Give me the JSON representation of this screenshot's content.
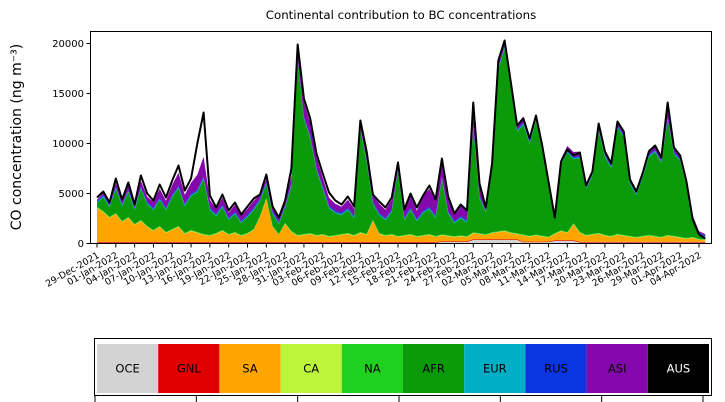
{
  "figure": {
    "background": "#ffffff"
  },
  "chart_data": {
    "type": "area",
    "stacked": true,
    "title": "Continental contribution to BC concentrations",
    "ylabel": "CO concentration (ng m⁻³)",
    "xlabel": "",
    "ylim": [
      0,
      21200
    ],
    "yticks": [
      0,
      5000,
      10000,
      15000,
      20000
    ],
    "ytick_labels": [
      "0",
      "5000",
      "10000",
      "15000",
      "20000"
    ],
    "x_unit": "days since 29-Dec-2021",
    "x_tick_interval_days": 3,
    "x_tick_labels": [
      "29-Dec-2021",
      "01-Jan-2022",
      "04-Jan-2022",
      "07-Jan-2022",
      "10-Jan-2022",
      "13-Jan-2022",
      "16-Jan-2022",
      "19-Jan-2022",
      "22-Jan-2022",
      "25-Jan-2022",
      "28-Jan-2022",
      "31-Jan-2022",
      "03-Feb-2022",
      "06-Feb-2022",
      "09-Feb-2022",
      "12-Feb-2022",
      "15-Feb-2022",
      "18-Feb-2022",
      "21-Feb-2022",
      "24-Feb-2022",
      "27-Feb-2022",
      "02-Mar-2022",
      "05-Mar-2022",
      "08-Mar-2022",
      "11-Mar-2022",
      "14-Mar-2022",
      "17-Mar-2022",
      "20-Mar-2022",
      "23-Mar-2022",
      "26-Mar-2022",
      "29-Mar-2022",
      "01-Apr-2022",
      "04-Apr-2022"
    ],
    "n_days": 98,
    "grid": false,
    "series": [
      {
        "name": "OCE",
        "color": "#d3d3d3",
        "values": [
          80,
          80,
          80,
          80,
          80,
          80,
          80,
          80,
          80,
          80,
          80,
          80,
          80,
          80,
          80,
          80,
          80,
          80,
          80,
          80,
          80,
          80,
          80,
          80,
          80,
          80,
          80,
          80,
          80,
          80,
          80,
          80,
          80,
          80,
          80,
          80,
          80,
          80,
          80,
          80,
          80,
          80,
          80,
          80,
          80,
          80,
          80,
          80,
          80,
          80,
          80,
          80,
          80,
          80,
          80,
          150,
          150,
          150,
          150,
          150,
          350,
          350,
          350,
          350,
          350,
          350,
          350,
          350,
          120,
          120,
          120,
          120,
          120,
          250,
          250,
          250,
          250,
          90,
          90,
          90,
          90,
          90,
          90,
          90,
          90,
          90,
          90,
          90,
          90,
          90,
          90,
          90,
          90,
          90,
          90,
          90,
          90,
          90
        ]
      },
      {
        "name": "GNL",
        "color": "#e00000",
        "value": 70
      },
      {
        "name": "SA",
        "color": "#ffa500",
        "values": [
          3400,
          3000,
          2400,
          2800,
          2000,
          2400,
          1700,
          2100,
          1500,
          1100,
          1500,
          900,
          1200,
          1500,
          800,
          1100,
          900,
          700,
          600,
          800,
          1100,
          700,
          900,
          600,
          800,
          1200,
          2500,
          4300,
          1500,
          700,
          1800,
          1000,
          600,
          700,
          800,
          600,
          700,
          500,
          600,
          700,
          800,
          600,
          900,
          700,
          2100,
          800,
          600,
          700,
          500,
          600,
          700,
          500,
          600,
          700,
          500,
          600,
          500,
          400,
          500,
          400,
          600,
          500,
          400,
          600,
          700,
          800,
          600,
          500,
          600,
          500,
          600,
          500,
          400,
          600,
          900,
          700,
          1600,
          900,
          600,
          700,
          800,
          600,
          500,
          700,
          600,
          500,
          400,
          500,
          600,
          500,
          400,
          600,
          500,
          400,
          300,
          400,
          200,
          150
        ]
      },
      {
        "name": "CA",
        "color": "#bdf53a",
        "value": 40
      },
      {
        "name": "NA",
        "color": "#21d121",
        "value": 60
      },
      {
        "name": "AFR",
        "color": "#0a9a0a",
        "values": [
          400,
          1400,
          1000,
          2400,
          1500,
          2500,
          1400,
          3100,
          2200,
          2000,
          2600,
          2200,
          3200,
          3800,
          2700,
          3400,
          4000,
          5500,
          2500,
          1700,
          2300,
          1400,
          1800,
          1200,
          1600,
          1900,
          1500,
          1400,
          1200,
          1000,
          1500,
          4500,
          17500,
          11500,
          9500,
          6500,
          4500,
          2800,
          2200,
          1900,
          2300,
          1700,
          10200,
          7200,
          1600,
          1800,
          1500,
          2200,
          6500,
          1500,
          2400,
          1500,
          2200,
          2500,
          1800,
          5500,
          2200,
          1300,
          1700,
          1400,
          10500,
          3500,
          2200,
          6500,
          16200,
          18200,
          14500,
          10200,
          11000,
          9200,
          11400,
          8600,
          5200,
          1600,
          6600,
          8000,
          6400,
          7400,
          4600,
          5800,
          10200,
          7800,
          6800,
          10600,
          9800,
          5200,
          4200,
          5800,
          7800,
          8400,
          7400,
          11500,
          8200,
          7600,
          5200,
          1700,
          400,
          200
        ]
      },
      {
        "name": "EUR",
        "color": "#00aec5",
        "value": 90
      },
      {
        "name": "RUS",
        "color": "#0a35e0",
        "value": 130
      },
      {
        "name": "ASI",
        "color": "#8408ab",
        "values": [
          100,
          200,
          150,
          400,
          300,
          500,
          300,
          600,
          500,
          600,
          900,
          700,
          1000,
          1300,
          900,
          1100,
          1500,
          2000,
          800,
          500,
          700,
          500,
          700,
          500,
          600,
          700,
          400,
          300,
          400,
          300,
          500,
          800,
          1200,
          1500,
          1300,
          1100,
          900,
          800,
          700,
          600,
          800,
          700,
          700,
          600,
          700,
          900,
          800,
          1000,
          700,
          800,
          1500,
          800,
          1500,
          1800,
          1500,
          1800,
          1400,
          800,
          1200,
          900,
          2200,
          1400,
          600,
          500,
          600,
          500,
          400,
          500,
          600,
          400,
          400,
          300,
          300,
          200,
          300,
          400,
          500,
          400,
          300,
          400,
          600,
          400,
          300,
          500,
          400,
          300,
          300,
          400,
          500,
          400,
          300,
          900,
          400,
          300,
          300,
          200,
          150,
          100
        ]
      },
      {
        "name": "AUS",
        "color": "#000000",
        "value": 5
      }
    ],
    "total_line": {
      "name": "total",
      "color": "#000000",
      "values": [
        4600,
        5200,
        4100,
        6500,
        4400,
        6100,
        3900,
        6800,
        5000,
        4300,
        5900,
        4600,
        6300,
        7800,
        5300,
        6500,
        10000,
        13100,
        4800,
        3600,
        4900,
        3300,
        4100,
        2900,
        3700,
        4500,
        4900,
        6900,
        3700,
        2600,
        4300,
        7500,
        19900,
        14500,
        12500,
        9000,
        7000,
        5100,
        4300,
        3900,
        4700,
        3700,
        12300,
        9200,
        4900,
        4200,
        3600,
        4600,
        8100,
        3400,
        5000,
        3600,
        4800,
        5800,
        4400,
        8500,
        4700,
        3000,
        3900,
        3300,
        14100,
        6000,
        3600,
        8000,
        18300,
        20300,
        16100,
        11800,
        12500,
        10500,
        12800,
        9800,
        6200,
        2600,
        8200,
        9400,
        8800,
        9100,
        5800,
        7200,
        12000,
        9200,
        8000,
        12200,
        11200,
        6400,
        5200,
        7000,
        9200,
        9800,
        8600,
        14100,
        9600,
        8800,
        6200,
        2400,
        900,
        500
      ]
    }
  },
  "legend": {
    "position": "bottom",
    "items": [
      {
        "label": "OCE",
        "color": "#d3d3d3",
        "text_color": "#000000"
      },
      {
        "label": "GNL",
        "color": "#e00000",
        "text_color": "#000000"
      },
      {
        "label": "SA",
        "color": "#ffa500",
        "text_color": "#000000"
      },
      {
        "label": "CA",
        "color": "#bdf53a",
        "text_color": "#000000"
      },
      {
        "label": "NA",
        "color": "#21d121",
        "text_color": "#000000"
      },
      {
        "label": "AFR",
        "color": "#0a9a0a",
        "text_color": "#000000"
      },
      {
        "label": "EUR",
        "color": "#00aec5",
        "text_color": "#000000"
      },
      {
        "label": "RUS",
        "color": "#0a35e0",
        "text_color": "#000000"
      },
      {
        "label": "ASI",
        "color": "#8408ab",
        "text_color": "#000000"
      },
      {
        "label": "AUS",
        "color": "#000000",
        "text_color": "#ffffff"
      }
    ]
  }
}
